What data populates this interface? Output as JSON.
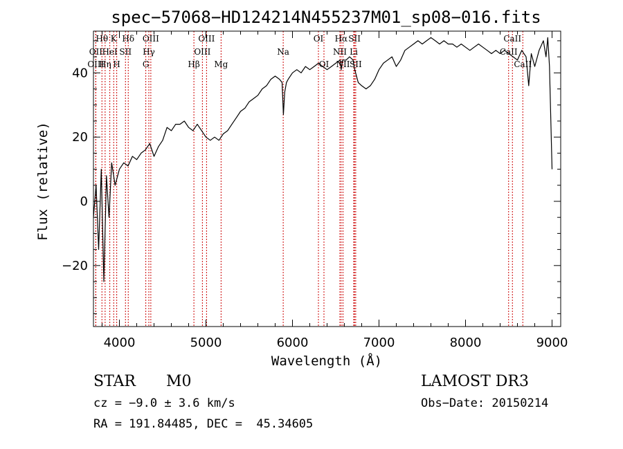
{
  "chart_data": {
    "type": "line",
    "title": "spec−57068−HD124214N455237M01_sp08−016.fits",
    "xlabel": "Wavelength (Å)",
    "ylabel": "Flux (relative)",
    "xlim": [
      3700,
      9100
    ],
    "ylim": [
      -39,
      53
    ],
    "xticks": [
      4000,
      5000,
      6000,
      7000,
      8000,
      9000
    ],
    "xtick_labels": [
      "4000",
      "5000",
      "6000",
      "7000",
      "8000",
      "9000"
    ],
    "yticks": [
      -20,
      0,
      20,
      40
    ],
    "ytick_labels": [
      "−20",
      "0",
      "20",
      "40"
    ],
    "series": [
      {
        "name": "flux",
        "x": [
          3700,
          3730,
          3760,
          3790,
          3820,
          3850,
          3880,
          3910,
          3950,
          4000,
          4050,
          4100,
          4150,
          4200,
          4250,
          4300,
          4350,
          4400,
          4450,
          4500,
          4550,
          4600,
          4650,
          4700,
          4750,
          4800,
          4850,
          4900,
          4950,
          5000,
          5050,
          5100,
          5150,
          5200,
          5250,
          5300,
          5350,
          5400,
          5450,
          5500,
          5550,
          5600,
          5650,
          5700,
          5750,
          5800,
          5850,
          5880,
          5895,
          5910,
          5930,
          5950,
          6000,
          6050,
          6100,
          6150,
          6200,
          6250,
          6300,
          6350,
          6400,
          6450,
          6500,
          6550,
          6563,
          6580,
          6620,
          6660,
          6700,
          6720,
          6740,
          6760,
          6800,
          6850,
          6900,
          6950,
          7000,
          7050,
          7100,
          7150,
          7200,
          7250,
          7300,
          7350,
          7400,
          7450,
          7500,
          7550,
          7600,
          7650,
          7700,
          7750,
          7800,
          7850,
          7900,
          7950,
          8000,
          8050,
          8100,
          8150,
          8200,
          8250,
          8300,
          8350,
          8400,
          8450,
          8500,
          8550,
          8600,
          8650,
          8700,
          8730,
          8760,
          8800,
          8850,
          8900,
          8930,
          8950,
          8970,
          9000
        ],
        "y": [
          -5,
          5,
          -15,
          10,
          -25,
          8,
          -5,
          12,
          5,
          10,
          12,
          11,
          14,
          13,
          15,
          16,
          18,
          14,
          17,
          19,
          23,
          22,
          24,
          24,
          25,
          23,
          22,
          24,
          22,
          20,
          19,
          20,
          19,
          21,
          22,
          24,
          26,
          28,
          29,
          31,
          32,
          33,
          35,
          36,
          38,
          39,
          38,
          37,
          27,
          34,
          37,
          38,
          40,
          41,
          40,
          42,
          41,
          42,
          43,
          42,
          41,
          42,
          43,
          44,
          41,
          44,
          44,
          45,
          44,
          41,
          39,
          37,
          36,
          35,
          36,
          38,
          41,
          43,
          44,
          45,
          42,
          44,
          47,
          48,
          49,
          50,
          49,
          50,
          51,
          50,
          49,
          50,
          49,
          49,
          48,
          49,
          48,
          47,
          48,
          49,
          48,
          47,
          46,
          47,
          46,
          47,
          46,
          45,
          44,
          47,
          45,
          36,
          46,
          42,
          47,
          50,
          45,
          51,
          42,
          10
        ]
      }
    ],
    "line_markers": [
      {
        "label": "Hθ",
        "x": 3798,
        "row": 1
      },
      {
        "label": "OII",
        "x": 3727,
        "row": 2
      },
      {
        "label": "OIII",
        "x": 3727,
        "row": 3
      },
      {
        "label": "K",
        "x": 3934,
        "row": 1
      },
      {
        "label": "HeI",
        "x": 3889,
        "row": 2
      },
      {
        "label": "Hη",
        "x": 3835,
        "row": 3
      },
      {
        "label": "Hδ",
        "x": 4102,
        "row": 1
      },
      {
        "label": "SII",
        "x": 4070,
        "row": 2
      },
      {
        "label": "H",
        "x": 3969,
        "row": 3
      },
      {
        "label": "OIII",
        "x": 4363,
        "row": 1
      },
      {
        "label": "Hγ",
        "x": 4340,
        "row": 2
      },
      {
        "label": "G",
        "x": 4305,
        "row": 3
      },
      {
        "label": "OIII",
        "x": 5007,
        "row": 1
      },
      {
        "label": "OIII",
        "x": 4959,
        "row": 2
      },
      {
        "label": "Hβ",
        "x": 4861,
        "row": 3
      },
      {
        "label": "Mg",
        "x": 5175,
        "row": 3
      },
      {
        "label": "Na",
        "x": 5893,
        "row": 2
      },
      {
        "label": "OI",
        "x": 6300,
        "row": 1
      },
      {
        "label": "OI",
        "x": 6364,
        "row": 3
      },
      {
        "label": "Hα",
        "x": 6563,
        "row": 1
      },
      {
        "label": "NII",
        "x": 6548,
        "row": 2
      },
      {
        "label": "NII",
        "x": 6584,
        "row": 3
      },
      {
        "label": "SII",
        "x": 6717,
        "row": 1
      },
      {
        "label": "Li",
        "x": 6708,
        "row": 2
      },
      {
        "label": "SII",
        "x": 6731,
        "row": 3
      },
      {
        "label": "CaII",
        "x": 8542,
        "row": 1
      },
      {
        "label": "CaII",
        "x": 8498,
        "row": 2
      },
      {
        "label": "CaII",
        "x": 8662,
        "row": 3
      }
    ],
    "line_color": "#000000",
    "marker_color": "#cc0000",
    "legend": "none",
    "grid": false
  },
  "info": {
    "object_type": "STAR",
    "subclass": "M0",
    "survey": "LAMOST DR3",
    "redshift": "cz = −9.0 ± 3.6 km/s",
    "obs_date": "Obs−Date: 20150214",
    "coords": "RA = 191.84485, DEC =  45.34605"
  }
}
